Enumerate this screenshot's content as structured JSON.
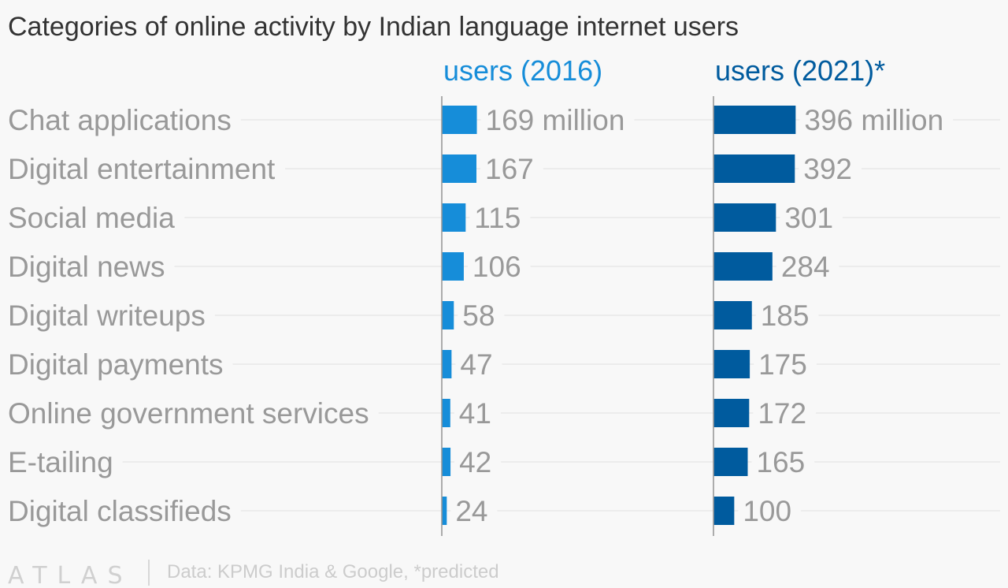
{
  "chart_data": {
    "type": "bar",
    "orientation": "horizontal",
    "title": "Categories of online activity by Indian language internet users",
    "categories": [
      "Chat applications",
      "Digital entertainment",
      "Social media",
      "Digital news",
      "Digital writeups",
      "Digital payments",
      "Online government services",
      "E-tailing",
      "Digital classifieds"
    ],
    "series": [
      {
        "name": "users (2016)",
        "color": "#168dd9",
        "values": [
          169,
          167,
          115,
          106,
          58,
          47,
          41,
          42,
          24
        ],
        "unit_suffix": " million"
      },
      {
        "name": "users (2021)*",
        "color": "#005b9e",
        "values": [
          396,
          392,
          301,
          284,
          185,
          175,
          172,
          165,
          100
        ],
        "unit_suffix": " million"
      }
    ],
    "xlim": [
      0,
      400
    ],
    "grid": false,
    "source": "Data: KPMG India & Google, *predicted",
    "brand": "ATLAS"
  }
}
